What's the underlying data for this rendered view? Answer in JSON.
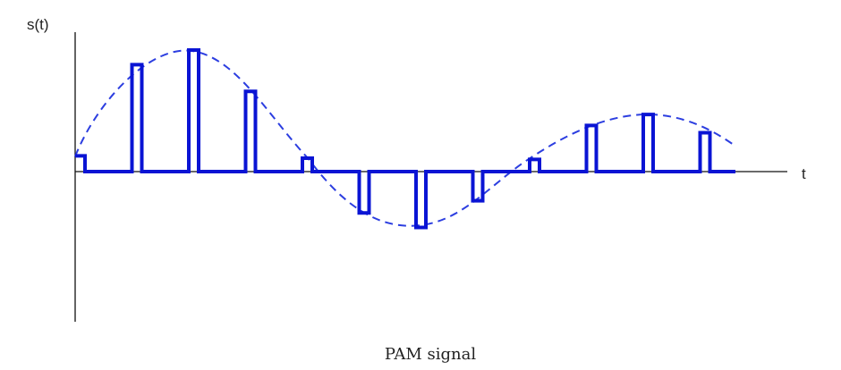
{
  "diagram": {
    "y_axis_label": "s(t)",
    "x_axis_label": "t",
    "caption": "PAM signal",
    "colors": {
      "pulse": "#0a14d4",
      "envelope": "#2c3ee0",
      "axis": "#111111"
    },
    "envelope": {
      "style": "dashed",
      "shape": "sinusoid with decaying amplitude"
    },
    "pulse_samples": [
      0.13,
      0.88,
      1.0,
      0.66,
      0.11,
      -0.34,
      -0.46,
      -0.24,
      0.1,
      0.38,
      0.47,
      0.32
    ]
  }
}
